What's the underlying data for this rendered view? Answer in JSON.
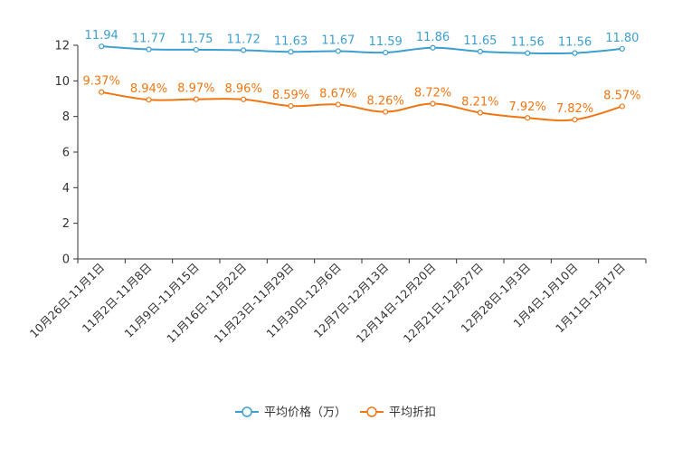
{
  "chart_data": {
    "type": "line",
    "title": "",
    "xlabel": "",
    "ylabel": "",
    "ylim": [
      0,
      12
    ],
    "yticks": [
      0,
      2,
      4,
      6,
      8,
      10,
      12
    ],
    "categories": [
      "10月26日-11月1日",
      "11月2日-11月8日",
      "11月9日-11月15日",
      "11月16日-11月22日",
      "11月23日-11月29日",
      "11月30日-12月6日",
      "12月7日-12月13日",
      "12月14日-12月20日",
      "12月21日-12月27日",
      "12月28日-1月3日",
      "1月4日-1月10日",
      "1月11日-1月17日"
    ],
    "series": [
      {
        "name": "平均价格（万）",
        "color": "#3c9fd0",
        "values": [
          11.94,
          11.77,
          11.75,
          11.72,
          11.63,
          11.67,
          11.59,
          11.86,
          11.65,
          11.56,
          11.56,
          11.8
        ],
        "labels": [
          "11.94",
          "11.77",
          "11.75",
          "11.72",
          "11.63",
          "11.67",
          "11.59",
          "11.86",
          "11.65",
          "11.56",
          "11.56",
          "11.80"
        ]
      },
      {
        "name": "平均折扣",
        "color": "#f07613",
        "values": [
          9.37,
          8.94,
          8.97,
          8.96,
          8.59,
          8.67,
          8.26,
          8.72,
          8.21,
          7.92,
          7.82,
          8.57
        ],
        "labels": [
          "9.37%",
          "8.94%",
          "8.97%",
          "8.96%",
          "8.59%",
          "8.67%",
          "8.26%",
          "8.72%",
          "8.21%",
          "7.92%",
          "7.82%",
          "8.57%"
        ]
      }
    ],
    "legend_position": "bottom-center",
    "grid": false
  }
}
